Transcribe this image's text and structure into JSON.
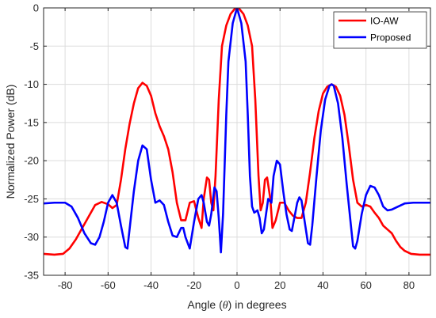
{
  "chart_data": {
    "type": "line",
    "title": "",
    "xlabel": {
      "prefix": "Angle (",
      "symbol": "θ",
      "suffix": ") in degrees"
    },
    "ylabel": "Normalized Power (dB)",
    "xlim": [
      -90,
      90
    ],
    "ylim": [
      -35,
      0
    ],
    "xticks": [
      -80,
      -60,
      -40,
      -20,
      0,
      20,
      40,
      60,
      80
    ],
    "yticks": [
      0,
      -5,
      -10,
      -15,
      -20,
      -25,
      -30,
      -35
    ],
    "xtick_labels": [
      "-80",
      "-60",
      "-40",
      "-20",
      "0",
      "20",
      "40",
      "60",
      "80"
    ],
    "ytick_labels": [
      "0",
      "-5",
      "-10",
      "-15",
      "-20",
      "-25",
      "-30",
      "-35"
    ],
    "grid": true,
    "legend_position": "top-right",
    "series": [
      {
        "name": "IO-AW",
        "color": "#ff0000",
        "points": [
          [
            -90,
            -32.2
          ],
          [
            -85,
            -32.3
          ],
          [
            -81,
            -32.2
          ],
          [
            -78,
            -31.5
          ],
          [
            -75,
            -30.3
          ],
          [
            -72,
            -28.8
          ],
          [
            -69,
            -27.3
          ],
          [
            -66,
            -25.8
          ],
          [
            -63,
            -25.4
          ],
          [
            -60,
            -25.7
          ],
          [
            -58,
            -26.2
          ],
          [
            -56,
            -25.8
          ],
          [
            -54,
            -22.5
          ],
          [
            -52,
            -18.5
          ],
          [
            -50,
            -15.2
          ],
          [
            -48,
            -12.5
          ],
          [
            -46,
            -10.5
          ],
          [
            -44,
            -9.8
          ],
          [
            -42,
            -10.2
          ],
          [
            -40,
            -11.5
          ],
          [
            -38,
            -13.8
          ],
          [
            -36,
            -15.5
          ],
          [
            -34,
            -16.8
          ],
          [
            -32,
            -18.5
          ],
          [
            -30,
            -21.5
          ],
          [
            -28,
            -25.5
          ],
          [
            -26,
            -27.8
          ],
          [
            -24,
            -27.8
          ],
          [
            -22,
            -25.5
          ],
          [
            -20,
            -25.3
          ],
          [
            -18,
            -27.5
          ],
          [
            -16.5,
            -28.8
          ],
          [
            -15.5,
            -25.0
          ],
          [
            -14,
            -22.2
          ],
          [
            -13,
            -22.5
          ],
          [
            -12,
            -25.5
          ],
          [
            -11,
            -26.5
          ],
          [
            -10,
            -22.0
          ],
          [
            -8.5,
            -12.0
          ],
          [
            -7,
            -5.0
          ],
          [
            -5,
            -2.3
          ],
          [
            -3,
            -0.8
          ],
          [
            -1,
            -0.1
          ],
          [
            0,
            0.0
          ],
          [
            1,
            -0.1
          ],
          [
            3,
            -0.8
          ],
          [
            5,
            -2.3
          ],
          [
            7,
            -5.0
          ],
          [
            8.5,
            -12.0
          ],
          [
            10,
            -22.0
          ],
          [
            11,
            -26.5
          ],
          [
            12,
            -25.5
          ],
          [
            13,
            -22.5
          ],
          [
            14,
            -22.2
          ],
          [
            15.5,
            -25.0
          ],
          [
            16.5,
            -28.8
          ],
          [
            18,
            -27.8
          ],
          [
            20,
            -25.5
          ],
          [
            22,
            -25.5
          ],
          [
            24,
            -26.5
          ],
          [
            26,
            -27.2
          ],
          [
            28,
            -27.5
          ],
          [
            30,
            -27.5
          ],
          [
            32,
            -25.5
          ],
          [
            34,
            -21.5
          ],
          [
            36,
            -17.0
          ],
          [
            38,
            -13.5
          ],
          [
            40,
            -11.2
          ],
          [
            42,
            -10.3
          ],
          [
            44,
            -10.0
          ],
          [
            46,
            -10.3
          ],
          [
            48,
            -11.5
          ],
          [
            50,
            -14.0
          ],
          [
            52,
            -18.0
          ],
          [
            54,
            -22.5
          ],
          [
            56,
            -25.5
          ],
          [
            58,
            -26.0
          ],
          [
            60,
            -25.8
          ],
          [
            62,
            -26.0
          ],
          [
            64,
            -26.8
          ],
          [
            66,
            -27.5
          ],
          [
            68,
            -28.5
          ],
          [
            70,
            -29.0
          ],
          [
            72,
            -29.5
          ],
          [
            74,
            -30.5
          ],
          [
            76,
            -31.3
          ],
          [
            78,
            -31.8
          ],
          [
            81,
            -32.2
          ],
          [
            85,
            -32.3
          ],
          [
            90,
            -32.3
          ]
        ]
      },
      {
        "name": "Proposed",
        "color": "#0000ff",
        "points": [
          [
            -90,
            -25.6
          ],
          [
            -85,
            -25.5
          ],
          [
            -80,
            -25.5
          ],
          [
            -77,
            -26.0
          ],
          [
            -74,
            -27.5
          ],
          [
            -71,
            -29.5
          ],
          [
            -68,
            -30.8
          ],
          [
            -66,
            -31.0
          ],
          [
            -64,
            -30.0
          ],
          [
            -62,
            -28.0
          ],
          [
            -60,
            -25.5
          ],
          [
            -58,
            -24.5
          ],
          [
            -56,
            -25.5
          ],
          [
            -54,
            -28.5
          ],
          [
            -52,
            -31.3
          ],
          [
            -51,
            -31.5
          ],
          [
            -50,
            -29.0
          ],
          [
            -48,
            -24.0
          ],
          [
            -46,
            -20.0
          ],
          [
            -44,
            -18.0
          ],
          [
            -42,
            -18.5
          ],
          [
            -40,
            -22.5
          ],
          [
            -38,
            -25.5
          ],
          [
            -36,
            -25.2
          ],
          [
            -34,
            -25.8
          ],
          [
            -32,
            -28.0
          ],
          [
            -30,
            -29.8
          ],
          [
            -28,
            -30.0
          ],
          [
            -26,
            -28.8
          ],
          [
            -25,
            -28.8
          ],
          [
            -24,
            -30.0
          ],
          [
            -22,
            -31.5
          ],
          [
            -20,
            -28.0
          ],
          [
            -18,
            -25.0
          ],
          [
            -16.5,
            -24.5
          ],
          [
            -15.5,
            -25.5
          ],
          [
            -14,
            -28.0
          ],
          [
            -13,
            -28.5
          ],
          [
            -12,
            -27.0
          ],
          [
            -10.5,
            -23.5
          ],
          [
            -9.5,
            -24.0
          ],
          [
            -8.5,
            -27.5
          ],
          [
            -7.5,
            -32.0
          ],
          [
            -6.5,
            -27.0
          ],
          [
            -5,
            -14.0
          ],
          [
            -4,
            -7.0
          ],
          [
            -2,
            -2.0
          ],
          [
            0,
            0.0
          ],
          [
            2,
            -2.0
          ],
          [
            4,
            -7.0
          ],
          [
            5,
            -14.0
          ],
          [
            6,
            -22.0
          ],
          [
            7,
            -26.0
          ],
          [
            8,
            -26.8
          ],
          [
            9.5,
            -26.5
          ],
          [
            10.5,
            -27.5
          ],
          [
            11.5,
            -29.5
          ],
          [
            12.5,
            -29.0
          ],
          [
            13.5,
            -27.0
          ],
          [
            14.5,
            -25.0
          ],
          [
            16,
            -25.5
          ],
          [
            17,
            -22.0
          ],
          [
            18.5,
            -20.0
          ],
          [
            20,
            -20.5
          ],
          [
            21.5,
            -24.0
          ],
          [
            23,
            -27.0
          ],
          [
            24.5,
            -29.0
          ],
          [
            25.5,
            -29.2
          ],
          [
            27,
            -27.0
          ],
          [
            28,
            -25.5
          ],
          [
            29,
            -24.8
          ],
          [
            30,
            -25.2
          ],
          [
            31.5,
            -28.0
          ],
          [
            33,
            -30.8
          ],
          [
            34,
            -31.0
          ],
          [
            35,
            -28.5
          ],
          [
            37,
            -22.0
          ],
          [
            39,
            -16.0
          ],
          [
            41,
            -12.0
          ],
          [
            43,
            -10.2
          ],
          [
            44,
            -10.0
          ],
          [
            45,
            -10.2
          ],
          [
            47,
            -12.5
          ],
          [
            49,
            -17.0
          ],
          [
            51,
            -23.0
          ],
          [
            53,
            -28.5
          ],
          [
            54,
            -31.2
          ],
          [
            55,
            -31.5
          ],
          [
            56,
            -30.5
          ],
          [
            58,
            -27.0
          ],
          [
            60,
            -24.5
          ],
          [
            62,
            -23.3
          ],
          [
            64,
            -23.5
          ],
          [
            66,
            -24.5
          ],
          [
            68,
            -26.0
          ],
          [
            70,
            -26.5
          ],
          [
            72,
            -26.4
          ],
          [
            75,
            -26.0
          ],
          [
            78,
            -25.6
          ],
          [
            82,
            -25.5
          ],
          [
            86,
            -25.5
          ],
          [
            90,
            -25.5
          ]
        ]
      }
    ]
  }
}
